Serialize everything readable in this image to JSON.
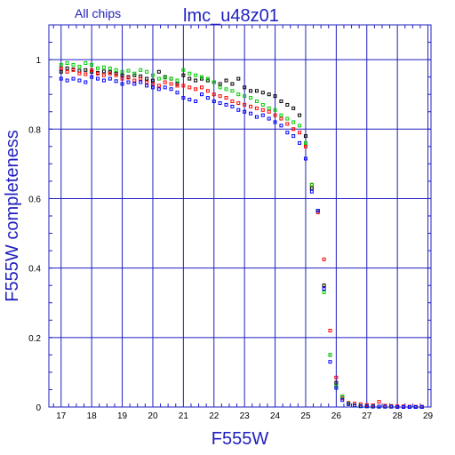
{
  "chart_data": {
    "type": "scatter",
    "subtitle": "All chips",
    "title": "lmc_u48z01",
    "xlabel": "F555W",
    "ylabel": "F555W completeness",
    "xlim": [
      16.6,
      29.1
    ],
    "ylim": [
      0,
      1.1
    ],
    "xticks": [
      17,
      18,
      19,
      20,
      21,
      22,
      23,
      24,
      25,
      26,
      27,
      28,
      29
    ],
    "xtick_labels": [
      "17",
      "18",
      "19",
      "20",
      "21",
      "22",
      "23",
      "24",
      "25",
      "26",
      "27",
      "28",
      "29"
    ],
    "yticks": [
      0,
      0.2,
      0.4,
      0.6,
      0.8,
      1
    ],
    "ytick_labels": [
      "0",
      "0.2",
      "0.4",
      "0.6",
      "0.8",
      "1"
    ],
    "grid": true,
    "series": [
      {
        "color": "#000000",
        "points": [
          [
            17.0,
            0.965
          ],
          [
            17.2,
            0.975
          ],
          [
            17.4,
            0.972
          ],
          [
            17.6,
            0.968
          ],
          [
            17.8,
            0.97
          ],
          [
            18.0,
            0.965
          ],
          [
            18.2,
            0.962
          ],
          [
            18.4,
            0.966
          ],
          [
            18.6,
            0.964
          ],
          [
            18.8,
            0.96
          ],
          [
            19.0,
            0.955
          ],
          [
            19.2,
            0.95
          ],
          [
            19.4,
            0.955
          ],
          [
            19.6,
            0.952
          ],
          [
            19.8,
            0.945
          ],
          [
            20.0,
            0.94
          ],
          [
            20.2,
            0.965
          ],
          [
            20.4,
            0.95
          ],
          [
            20.6,
            0.945
          ],
          [
            20.8,
            0.93
          ],
          [
            21.0,
            0.955
          ],
          [
            21.2,
            0.945
          ],
          [
            21.4,
            0.94
          ],
          [
            21.6,
            0.945
          ],
          [
            21.8,
            0.94
          ],
          [
            22.0,
            0.935
          ],
          [
            22.2,
            0.93
          ],
          [
            22.4,
            0.94
          ],
          [
            22.6,
            0.93
          ],
          [
            22.8,
            0.945
          ],
          [
            23.0,
            0.92
          ],
          [
            23.2,
            0.91
          ],
          [
            23.4,
            0.91
          ],
          [
            23.6,
            0.905
          ],
          [
            23.8,
            0.9
          ],
          [
            24.0,
            0.895
          ],
          [
            24.2,
            0.88
          ],
          [
            24.4,
            0.87
          ],
          [
            24.6,
            0.86
          ],
          [
            24.8,
            0.84
          ],
          [
            25.0,
            0.78
          ],
          [
            25.2,
            0.63
          ],
          [
            25.4,
            0.565
          ],
          [
            25.6,
            0.35
          ],
          [
            25.8,
            0.15
          ],
          [
            26.0,
            0.07
          ],
          [
            26.2,
            0.03
          ],
          [
            26.4,
            0.01
          ],
          [
            26.6,
            0.005
          ],
          [
            26.8,
            0.003
          ],
          [
            27.0,
            0.002
          ],
          [
            27.2,
            0.002
          ],
          [
            27.4,
            0.001
          ],
          [
            27.6,
            0.001
          ],
          [
            27.8,
            0.001
          ],
          [
            28.0,
            0.0
          ],
          [
            28.2,
            0.0
          ],
          [
            28.4,
            0.0
          ],
          [
            28.6,
            0.0
          ],
          [
            28.8,
            0.0
          ]
        ]
      },
      {
        "color": "#ff0000",
        "points": [
          [
            17.0,
            0.975
          ],
          [
            17.2,
            0.965
          ],
          [
            17.4,
            0.97
          ],
          [
            17.6,
            0.96
          ],
          [
            17.8,
            0.958
          ],
          [
            18.0,
            0.97
          ],
          [
            18.2,
            0.96
          ],
          [
            18.4,
            0.955
          ],
          [
            18.6,
            0.96
          ],
          [
            18.8,
            0.955
          ],
          [
            19.0,
            0.945
          ],
          [
            19.2,
            0.948
          ],
          [
            19.4,
            0.94
          ],
          [
            19.6,
            0.945
          ],
          [
            19.8,
            0.935
          ],
          [
            20.0,
            0.93
          ],
          [
            20.2,
            0.925
          ],
          [
            20.4,
            0.935
          ],
          [
            20.6,
            0.93
          ],
          [
            20.8,
            0.925
          ],
          [
            21.0,
            0.925
          ],
          [
            21.2,
            0.92
          ],
          [
            21.4,
            0.915
          ],
          [
            21.6,
            0.92
          ],
          [
            21.8,
            0.91
          ],
          [
            22.0,
            0.9
          ],
          [
            22.2,
            0.895
          ],
          [
            22.4,
            0.89
          ],
          [
            22.6,
            0.88
          ],
          [
            22.8,
            0.875
          ],
          [
            23.0,
            0.87
          ],
          [
            23.2,
            0.865
          ],
          [
            23.4,
            0.86
          ],
          [
            23.6,
            0.855
          ],
          [
            23.8,
            0.85
          ],
          [
            24.0,
            0.84
          ],
          [
            24.2,
            0.83
          ],
          [
            24.4,
            0.815
          ],
          [
            24.6,
            0.8
          ],
          [
            24.8,
            0.79
          ],
          [
            25.0,
            0.75
          ],
          [
            25.2,
            0.64
          ],
          [
            25.4,
            0.56
          ],
          [
            25.6,
            0.425
          ],
          [
            25.8,
            0.22
          ],
          [
            26.0,
            0.085
          ],
          [
            26.2,
            0.025
          ],
          [
            26.4,
            0.012
          ],
          [
            26.6,
            0.01
          ],
          [
            26.8,
            0.008
          ],
          [
            27.0,
            0.006
          ],
          [
            27.2,
            0.005
          ],
          [
            27.4,
            0.015
          ],
          [
            27.6,
            0.004
          ],
          [
            27.8,
            0.003
          ],
          [
            28.0,
            0.002
          ],
          [
            28.2,
            0.002
          ],
          [
            28.4,
            0.001
          ],
          [
            28.6,
            0.001
          ],
          [
            28.8,
            0.001
          ]
        ]
      },
      {
        "color": "#00cc00",
        "points": [
          [
            17.0,
            0.985
          ],
          [
            17.2,
            0.99
          ],
          [
            17.4,
            0.985
          ],
          [
            17.6,
            0.98
          ],
          [
            17.8,
            0.99
          ],
          [
            18.0,
            0.985
          ],
          [
            18.2,
            0.975
          ],
          [
            18.4,
            0.978
          ],
          [
            18.6,
            0.975
          ],
          [
            18.8,
            0.97
          ],
          [
            19.0,
            0.965
          ],
          [
            19.2,
            0.968
          ],
          [
            19.4,
            0.96
          ],
          [
            19.6,
            0.97
          ],
          [
            19.8,
            0.965
          ],
          [
            20.0,
            0.955
          ],
          [
            20.2,
            0.945
          ],
          [
            20.4,
            0.948
          ],
          [
            20.6,
            0.945
          ],
          [
            20.8,
            0.94
          ],
          [
            21.0,
            0.97
          ],
          [
            21.2,
            0.96
          ],
          [
            21.4,
            0.955
          ],
          [
            21.6,
            0.95
          ],
          [
            21.8,
            0.945
          ],
          [
            22.0,
            0.935
          ],
          [
            22.2,
            0.92
          ],
          [
            22.4,
            0.915
          ],
          [
            22.6,
            0.91
          ],
          [
            22.8,
            0.9
          ],
          [
            23.0,
            0.895
          ],
          [
            23.2,
            0.89
          ],
          [
            23.4,
            0.88
          ],
          [
            23.6,
            0.87
          ],
          [
            23.8,
            0.86
          ],
          [
            24.0,
            0.855
          ],
          [
            24.2,
            0.84
          ],
          [
            24.4,
            0.83
          ],
          [
            24.6,
            0.82
          ],
          [
            24.8,
            0.81
          ],
          [
            25.0,
            0.76
          ],
          [
            25.2,
            0.64
          ],
          [
            25.4,
            0.565
          ],
          [
            25.6,
            0.33
          ],
          [
            25.8,
            0.15
          ],
          [
            26.0,
            0.06
          ],
          [
            26.2,
            0.03
          ],
          [
            26.4,
            0.01
          ],
          [
            26.6,
            0.005
          ],
          [
            26.8,
            0.003
          ],
          [
            27.0,
            0.002
          ],
          [
            27.2,
            0.002
          ],
          [
            27.4,
            0.001
          ],
          [
            27.6,
            0.001
          ],
          [
            27.8,
            0.001
          ],
          [
            28.0,
            0.0
          ],
          [
            28.2,
            0.0
          ],
          [
            28.4,
            0.0
          ],
          [
            28.6,
            0.0
          ],
          [
            28.8,
            0.0
          ]
        ]
      },
      {
        "color": "#0000ff",
        "points": [
          [
            17.0,
            0.945
          ],
          [
            17.2,
            0.94
          ],
          [
            17.4,
            0.945
          ],
          [
            17.6,
            0.94
          ],
          [
            17.8,
            0.935
          ],
          [
            18.0,
            0.95
          ],
          [
            18.2,
            0.945
          ],
          [
            18.4,
            0.94
          ],
          [
            18.6,
            0.945
          ],
          [
            18.8,
            0.938
          ],
          [
            19.0,
            0.93
          ],
          [
            19.2,
            0.935
          ],
          [
            19.4,
            0.93
          ],
          [
            19.6,
            0.935
          ],
          [
            19.8,
            0.925
          ],
          [
            20.0,
            0.92
          ],
          [
            20.2,
            0.915
          ],
          [
            20.4,
            0.92
          ],
          [
            20.6,
            0.915
          ],
          [
            20.8,
            0.905
          ],
          [
            21.0,
            0.89
          ],
          [
            21.2,
            0.885
          ],
          [
            21.4,
            0.88
          ],
          [
            21.6,
            0.9
          ],
          [
            21.8,
            0.89
          ],
          [
            22.0,
            0.88
          ],
          [
            22.2,
            0.875
          ],
          [
            22.4,
            0.87
          ],
          [
            22.6,
            0.865
          ],
          [
            22.8,
            0.855
          ],
          [
            23.0,
            0.85
          ],
          [
            23.2,
            0.845
          ],
          [
            23.4,
            0.835
          ],
          [
            23.6,
            0.84
          ],
          [
            23.8,
            0.83
          ],
          [
            24.0,
            0.82
          ],
          [
            24.2,
            0.81
          ],
          [
            24.4,
            0.79
          ],
          [
            24.6,
            0.78
          ],
          [
            24.8,
            0.76
          ],
          [
            25.0,
            0.715
          ],
          [
            25.2,
            0.62
          ],
          [
            25.4,
            0.565
          ],
          [
            25.6,
            0.34
          ],
          [
            25.8,
            0.13
          ],
          [
            26.0,
            0.055
          ],
          [
            26.2,
            0.02
          ],
          [
            26.4,
            0.008
          ],
          [
            26.6,
            0.004
          ],
          [
            26.8,
            0.002
          ],
          [
            27.0,
            0.002
          ],
          [
            27.2,
            0.001
          ],
          [
            27.4,
            0.001
          ],
          [
            27.6,
            0.001
          ],
          [
            27.8,
            0.001
          ],
          [
            28.0,
            0.0
          ],
          [
            28.2,
            0.0
          ],
          [
            28.4,
            0.0
          ],
          [
            28.6,
            0.0
          ],
          [
            28.8,
            0.0
          ]
        ]
      }
    ]
  }
}
